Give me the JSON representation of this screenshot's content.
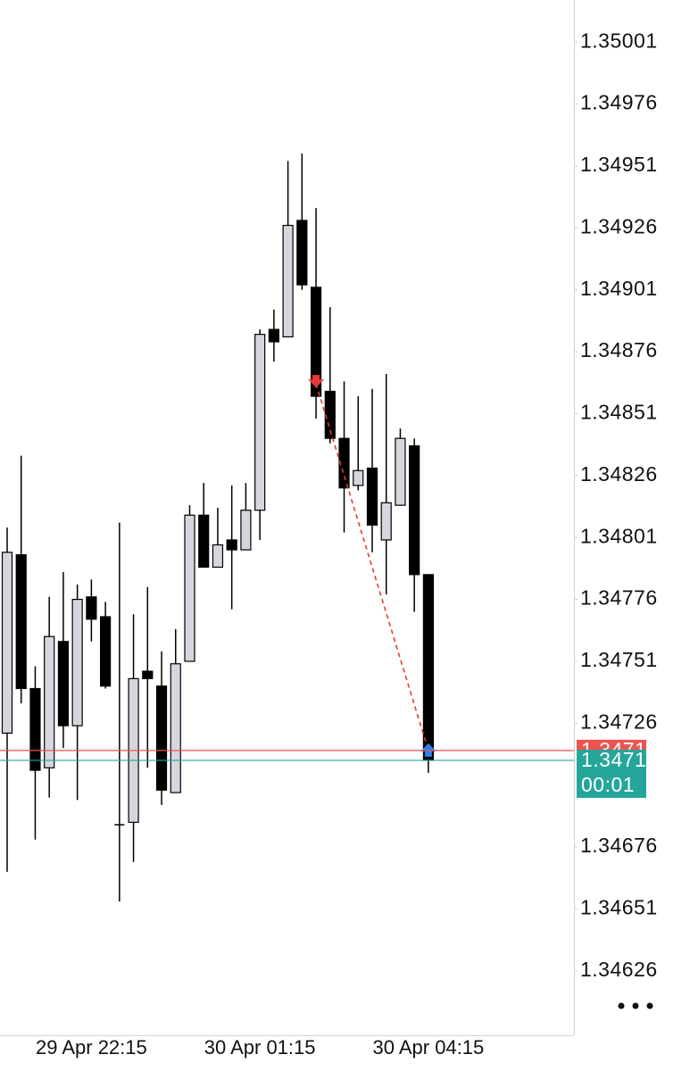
{
  "chart_data": {
    "type": "candlestick",
    "categories": [
      null,
      null,
      null,
      null,
      null,
      null,
      "29 Apr 22:15",
      null,
      null,
      null,
      null,
      null,
      null,
      null,
      null,
      null,
      null,
      null,
      "30 Apr 01:15",
      null,
      null,
      null,
      null,
      null,
      null,
      null,
      null,
      null,
      null,
      null,
      "30 Apr 04:15"
    ],
    "open": [
      1.34722,
      1.34794,
      1.3474,
      1.34708,
      1.34759,
      1.34725,
      1.34777,
      1.34769,
      1.34685,
      1.34686,
      1.34747,
      1.34741,
      1.34698,
      1.34751,
      1.3481,
      1.34789,
      1.348,
      1.34796,
      1.34812,
      1.34885,
      1.34882,
      1.34929,
      1.34902,
      1.3486,
      1.34841,
      1.34822,
      1.34829,
      1.348,
      1.34814,
      1.34838,
      1.34786
    ],
    "high": [
      1.34805,
      1.34834,
      1.34749,
      1.34777,
      1.34787,
      1.34782,
      1.34784,
      1.34775,
      1.34807,
      1.3477,
      1.34781,
      1.34755,
      1.34764,
      1.34814,
      1.34823,
      1.34813,
      1.34822,
      1.34823,
      1.34885,
      1.34893,
      1.34953,
      1.34956,
      1.34934,
      1.34894,
      1.34864,
      1.34858,
      1.34861,
      1.34867,
      1.34845,
      1.34841,
      1.34786
    ],
    "low": [
      1.34666,
      1.34734,
      1.34679,
      1.34696,
      1.34716,
      1.34695,
      1.34759,
      1.3474,
      1.34654,
      1.3467,
      1.34708,
      1.34693,
      1.34698,
      1.34751,
      1.34789,
      1.34789,
      1.34772,
      1.34796,
      1.348,
      1.34872,
      1.34882,
      1.34901,
      1.34849,
      1.34839,
      1.34803,
      1.3482,
      1.34795,
      1.34778,
      1.34814,
      1.34771,
      1.34706
    ],
    "close": [
      1.34795,
      1.3474,
      1.34707,
      1.34761,
      1.34725,
      1.34776,
      1.34768,
      1.34741,
      1.34685,
      1.34744,
      1.34744,
      1.34699,
      1.3475,
      1.3481,
      1.34789,
      1.34798,
      1.34796,
      1.34812,
      1.34883,
      1.3488,
      1.34927,
      1.34903,
      1.34858,
      1.34841,
      1.34821,
      1.34828,
      1.34806,
      1.34815,
      1.34841,
      1.34786,
      1.34711
    ],
    "up_color": "#d6d6de",
    "down_color": "#000000",
    "ylim": [
      1.346,
      1.35018
    ],
    "yticks": [
      1.35001,
      1.34976,
      1.34951,
      1.34926,
      1.34901,
      1.34876,
      1.34851,
      1.34826,
      1.34801,
      1.34776,
      1.34751,
      1.34726,
      1.34676,
      1.34651,
      1.34626
    ],
    "price_lines": [
      {
        "value": 1.34715,
        "color": "#ef5350"
      },
      {
        "value": 1.34711,
        "color": "#26a69a",
        "countdown": "00:01"
      }
    ],
    "trade": {
      "sell": {
        "x": 22,
        "price": 1.34863,
        "color": "#e53935"
      },
      "buy": {
        "x": 30,
        "price": 1.34715,
        "color": "#2f80ed"
      }
    }
  }
}
